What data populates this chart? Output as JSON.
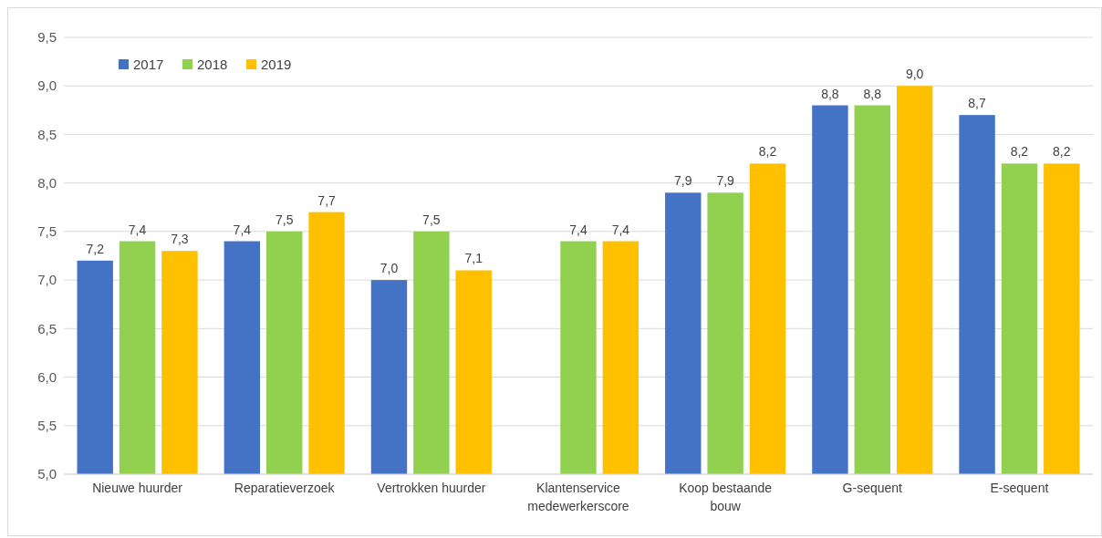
{
  "chart_data": {
    "type": "bar",
    "categories": [
      "Nieuwe huurder",
      "Reparatieverzoek",
      "Vertrokken huurder",
      "Klantenservice medewerkerscore",
      "Koop bestaande bouw",
      "G-sequent",
      "E-sequent"
    ],
    "series": [
      {
        "name": "2017",
        "color": "#4472c4",
        "values": [
          7.2,
          7.4,
          7.0,
          null,
          7.9,
          8.8,
          8.7
        ],
        "value_labels": [
          "7,2",
          "7,4",
          "7,0",
          null,
          "7,9",
          "8,8",
          "8,7"
        ]
      },
      {
        "name": "2018",
        "color": "#92d050",
        "values": [
          7.4,
          7.5,
          7.5,
          7.4,
          7.9,
          8.8,
          8.2
        ],
        "value_labels": [
          "7,4",
          "7,5",
          "7,5",
          "7,4",
          "7,9",
          "8,8",
          "8,2"
        ]
      },
      {
        "name": "2019",
        "color": "#ffc000",
        "values": [
          7.3,
          7.7,
          7.1,
          7.4,
          8.2,
          9.0,
          8.2
        ],
        "value_labels": [
          "7,3",
          "7,7",
          "7,1",
          "7,4",
          "8,2",
          "9,0",
          "8,2"
        ]
      }
    ],
    "ylim": [
      5,
      9.5
    ],
    "yticks": [
      {
        "value": 5,
        "label": "5,0"
      },
      {
        "value": 5.5,
        "label": "5,5"
      },
      {
        "value": 6,
        "label": "6,0"
      },
      {
        "value": 6.5,
        "label": "6,5"
      },
      {
        "value": 7,
        "label": "7,0"
      },
      {
        "value": 7.5,
        "label": "7,5"
      },
      {
        "value": 8,
        "label": "8,0"
      },
      {
        "value": 8.5,
        "label": "8,5"
      },
      {
        "value": 9,
        "label": "9,0"
      },
      {
        "value": 9.5,
        "label": "9,5"
      }
    ],
    "grid": "y",
    "legend": "top left"
  }
}
